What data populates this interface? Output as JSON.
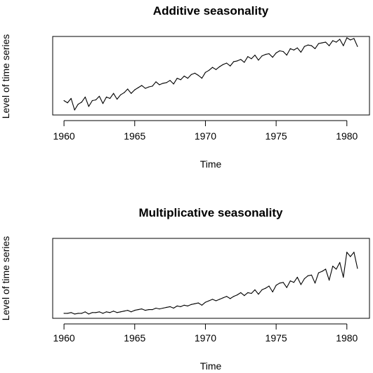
{
  "chart_data": [
    {
      "type": "line",
      "title": "Additive seasonality",
      "xlabel": "Time",
      "ylabel": "Level of time series",
      "xlim": [
        1959.2,
        1981.6
      ],
      "ylim": [
        0,
        100
      ],
      "xticks": [
        1960,
        1965,
        1970,
        1975,
        1980
      ],
      "xtick_labels": [
        "1960",
        "1965",
        "1970",
        "1975",
        "1980"
      ],
      "yticks_shown": false,
      "grid": false,
      "series": [
        {
          "x": [
            1960,
            1960.25,
            1960.5,
            1960.75,
            1961,
            1961.25,
            1961.5,
            1961.75,
            1962,
            1962.25,
            1962.5,
            1962.75,
            1963,
            1963.25,
            1963.5,
            1963.75,
            1964,
            1964.25,
            1964.5,
            1964.75,
            1965,
            1965.25,
            1965.5,
            1965.75,
            1966,
            1966.25,
            1966.5,
            1966.75,
            1967,
            1967.25,
            1967.5,
            1967.75,
            1968,
            1968.25,
            1968.5,
            1968.75,
            1969,
            1969.25,
            1969.5,
            1969.75,
            1970,
            1970.25,
            1970.5,
            1970.75,
            1971,
            1971.25,
            1971.5,
            1971.75,
            1972,
            1972.25,
            1972.5,
            1972.75,
            1973,
            1973.25,
            1973.5,
            1973.75,
            1974,
            1974.25,
            1974.5,
            1974.75,
            1975,
            1975.25,
            1975.5,
            1975.75,
            1976,
            1976.25,
            1976.5,
            1976.75,
            1977,
            1977.25,
            1977.5,
            1977.75,
            1978,
            1978.25,
            1978.5,
            1978.75,
            1979,
            1979.25,
            1979.5,
            1979.75,
            1980,
            1980.25,
            1980.5,
            1980.75
          ],
          "values": [
            16,
            13,
            19,
            3,
            11,
            14,
            21,
            8,
            16,
            17,
            22,
            12,
            21,
            19,
            26,
            18,
            24,
            27,
            32,
            26,
            31,
            34,
            37,
            33,
            35,
            36,
            42,
            38,
            40,
            41,
            44,
            39,
            47,
            45,
            50,
            47,
            52,
            54,
            51,
            47,
            55,
            58,
            62,
            59,
            63,
            66,
            68,
            64,
            70,
            71,
            73,
            69,
            77,
            74,
            79,
            72,
            78,
            80,
            81,
            76,
            82,
            85,
            84,
            79,
            88,
            86,
            89,
            83,
            91,
            93,
            92,
            88,
            95,
            96,
            97,
            92,
            99,
            97,
            101,
            92,
            103,
            100,
            102,
            91
          ]
        }
      ]
    },
    {
      "type": "line",
      "title": "Multiplicative seasonality",
      "xlabel": "Time",
      "ylabel": "Level of time series",
      "xlim": [
        1959.2,
        1981.6
      ],
      "ylim": [
        0,
        100
      ],
      "xticks": [
        1960,
        1965,
        1970,
        1975,
        1980
      ],
      "xtick_labels": [
        "1960",
        "1965",
        "1970",
        "1975",
        "1980"
      ],
      "yticks_shown": false,
      "grid": false,
      "series": [
        {
          "x": [
            1960,
            1960.25,
            1960.5,
            1960.75,
            1961,
            1961.25,
            1961.5,
            1961.75,
            1962,
            1962.25,
            1962.5,
            1962.75,
            1963,
            1963.25,
            1963.5,
            1963.75,
            1964,
            1964.25,
            1964.5,
            1964.75,
            1965,
            1965.25,
            1965.5,
            1965.75,
            1966,
            1966.25,
            1966.5,
            1966.75,
            1967,
            1967.25,
            1967.5,
            1967.75,
            1968,
            1968.25,
            1968.5,
            1968.75,
            1969,
            1969.25,
            1969.5,
            1969.75,
            1970,
            1970.25,
            1970.5,
            1970.75,
            1971,
            1971.25,
            1971.5,
            1971.75,
            1972,
            1972.25,
            1972.5,
            1972.75,
            1973,
            1973.25,
            1973.5,
            1973.75,
            1974,
            1974.25,
            1974.5,
            1974.75,
            1975,
            1975.25,
            1975.5,
            1975.75,
            1976,
            1976.25,
            1976.5,
            1976.75,
            1977,
            1977.25,
            1977.5,
            1977.75,
            1978,
            1978.25,
            1978.5,
            1978.75,
            1979,
            1979.25,
            1979.5,
            1979.75,
            1980,
            1980.25,
            1980.5,
            1980.75
          ],
          "values": [
            3,
            3,
            4,
            2,
            3,
            3,
            5,
            2,
            4,
            4,
            5,
            3,
            5,
            4,
            6,
            4,
            5,
            6,
            7,
            5,
            7,
            8,
            9,
            7,
            8,
            8,
            10,
            9,
            10,
            11,
            12,
            10,
            13,
            12,
            14,
            13,
            15,
            16,
            17,
            14,
            18,
            20,
            22,
            20,
            22,
            24,
            26,
            23,
            26,
            28,
            31,
            27,
            31,
            30,
            35,
            29,
            35,
            37,
            40,
            32,
            41,
            44,
            45,
            38,
            47,
            45,
            52,
            42,
            50,
            54,
            55,
            44,
            58,
            60,
            63,
            48,
            67,
            63,
            72,
            52,
            86,
            80,
            86,
            64
          ]
        }
      ]
    }
  ]
}
